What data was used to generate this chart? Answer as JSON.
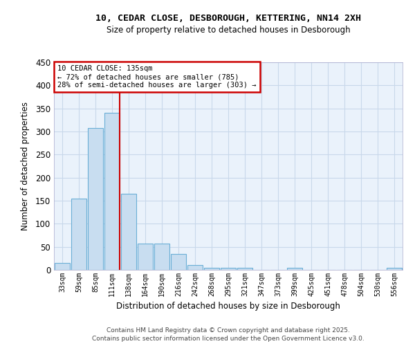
{
  "title1": "10, CEDAR CLOSE, DESBOROUGH, KETTERING, NN14 2XH",
  "title2": "Size of property relative to detached houses in Desborough",
  "xlabel": "Distribution of detached houses by size in Desborough",
  "ylabel": "Number of detached properties",
  "bin_labels": [
    "33sqm",
    "59sqm",
    "85sqm",
    "111sqm",
    "138sqm",
    "164sqm",
    "190sqm",
    "216sqm",
    "242sqm",
    "268sqm",
    "295sqm",
    "321sqm",
    "347sqm",
    "373sqm",
    "399sqm",
    "425sqm",
    "451sqm",
    "478sqm",
    "504sqm",
    "530sqm",
    "556sqm"
  ],
  "bar_heights": [
    15,
    155,
    308,
    340,
    165,
    57,
    57,
    35,
    10,
    5,
    4,
    4,
    0,
    0,
    4,
    0,
    0,
    0,
    0,
    0,
    4
  ],
  "bar_color": "#c8ddf0",
  "bar_edge_color": "#6aaed6",
  "annotation_line1": "10 CEDAR CLOSE: 135sqm",
  "annotation_line2": "← 72% of detached houses are smaller (785)",
  "annotation_line3": "28% of semi-detached houses are larger (303) →",
  "vline_color": "#cc0000",
  "annotation_box_edge_color": "#cc0000",
  "ylim": [
    0,
    450
  ],
  "yticks": [
    0,
    50,
    100,
    150,
    200,
    250,
    300,
    350,
    400,
    450
  ],
  "footer1": "Contains HM Land Registry data © Crown copyright and database right 2025.",
  "footer2": "Contains public sector information licensed under the Open Government Licence v3.0.",
  "bg_color": "#eaf2fb",
  "grid_color": "#c8d8ea",
  "vline_x_index": 3.47
}
